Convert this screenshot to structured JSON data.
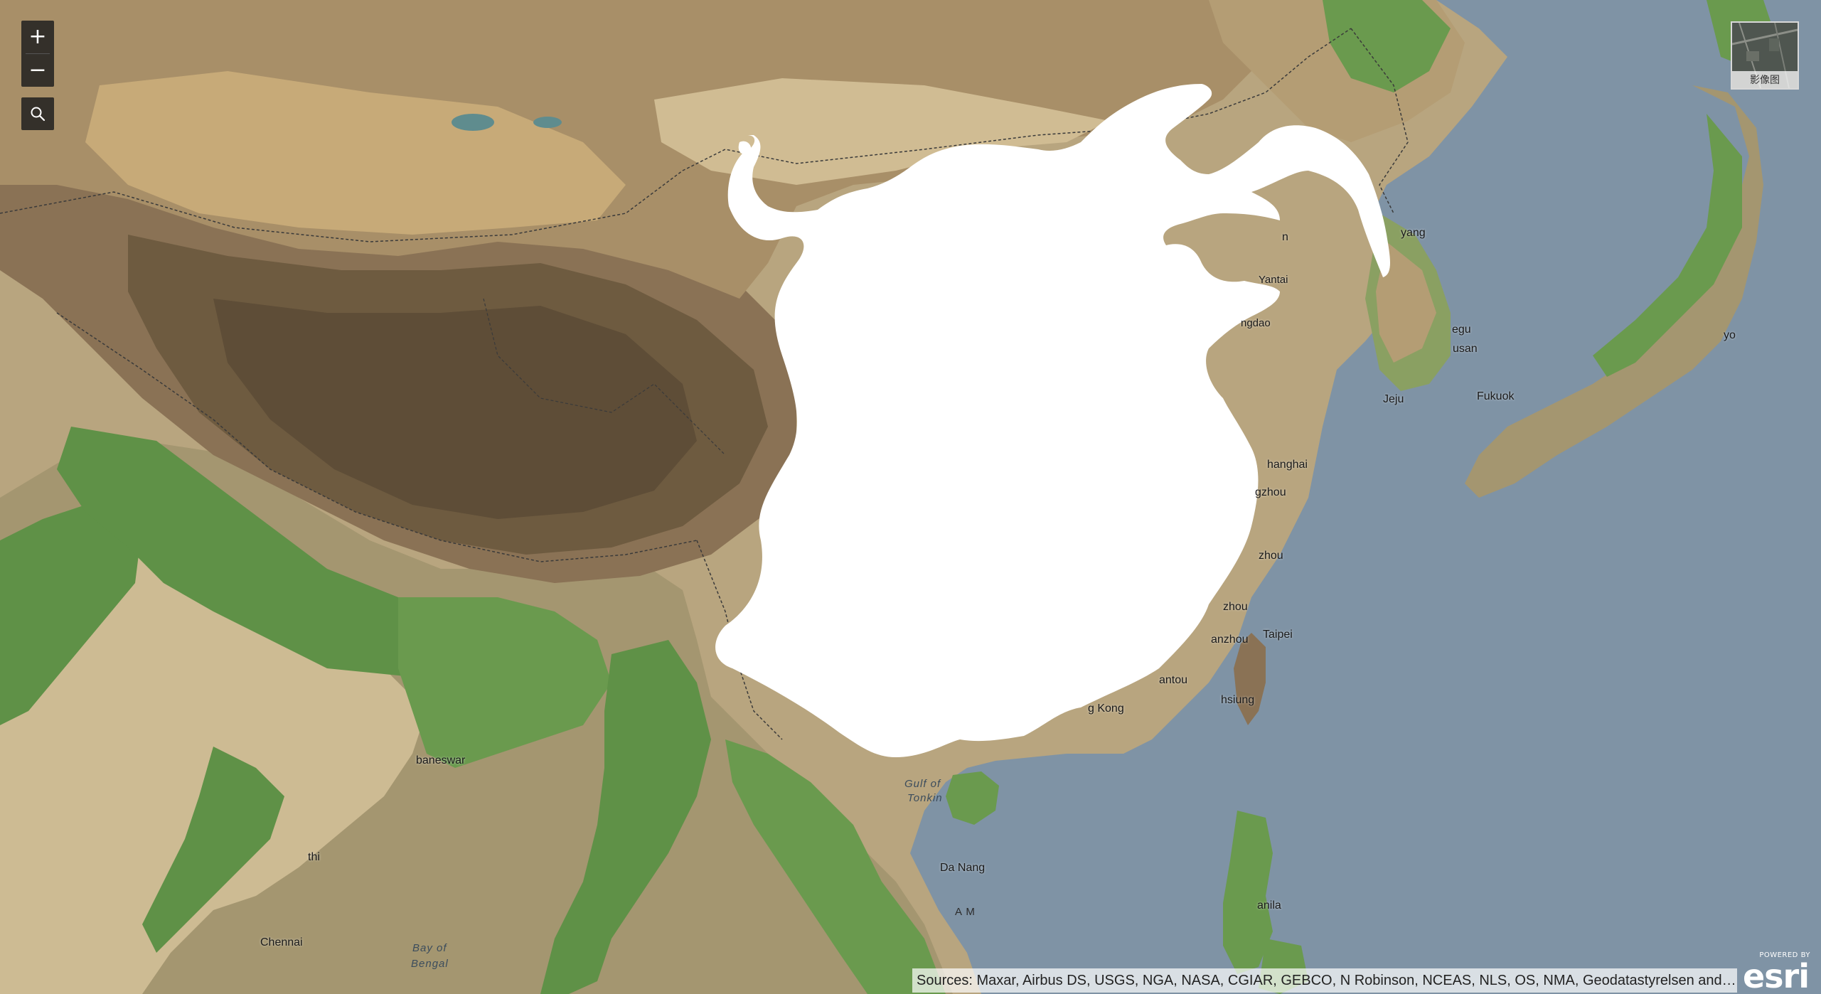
{
  "map": {
    "controls": {
      "zoom_in_label": "+",
      "zoom_out_label": "−",
      "search_icon": "search-icon"
    },
    "basemap_toggle": {
      "label": "影像图"
    },
    "attribution": "Sources: Maxar, Airbus DS, USGS, NGA, NASA, CGIAR, GEBCO, N Robinson, NCEAS, NLS, OS, NMA, Geodatastyrelsen and th…",
    "logo": {
      "powered": "POWERED BY",
      "word": "esri"
    },
    "colors": {
      "water": "#7f93a5",
      "lowland_green": "#5f9147",
      "plains": "#b8a57f",
      "plateau": "#9a8160",
      "high_plateau": "#6e5b40",
      "mask": "#ffffff"
    },
    "labels": {
      "yantai": "Yantai",
      "qingdao": "ngdao",
      "yang": "yang",
      "daegu": "egu",
      "busan": "usan",
      "jeju": "Jeju",
      "fukuoka": "Fukuok",
      "tokyo": "yo",
      "shanghai": "hanghai",
      "hangzhou": "gzhou",
      "wenzhou": "zhou",
      "fuzhou": "zhou",
      "quanzhou": "anzhou",
      "shantou": "antou",
      "hongkong": "g Kong",
      "taipei": "Taipei",
      "kaohsiung": "hsiung",
      "gulf_of_tonkin_1": "Gulf of",
      "gulf_of_tonkin_2": "Tonkin",
      "da_nang": "Da Nang",
      "manila": "anila",
      "bhubaneswar": "baneswar",
      "delhi": "thi",
      "chennai": "Chennai",
      "bay_of_bengal_1": "Bay of",
      "bay_of_bengal_2": "Bengal",
      "vietnam_partial": "A M",
      "dalian": "n"
    }
  }
}
